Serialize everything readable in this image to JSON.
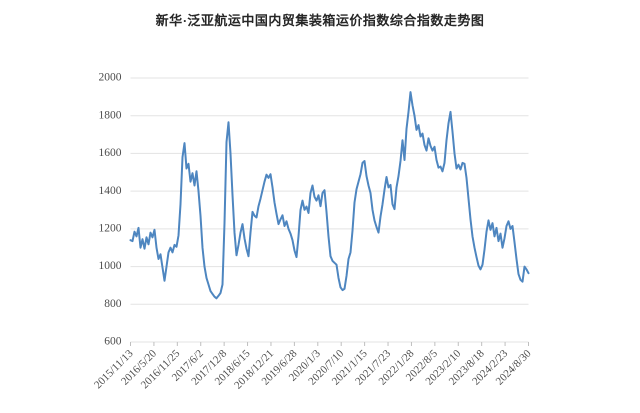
{
  "title": "新华·泛亚航运中国内贸集装箱运价指数综合指数走势图",
  "chart_data": {
    "type": "line",
    "title": "新华·泛亚航运中国内贸集装箱运价指数综合指数走势图",
    "xlabel": "",
    "ylabel": "",
    "grid": true,
    "legend": "none",
    "ylim": [
      600,
      2000
    ],
    "y_ticks": [
      600,
      800,
      1000,
      1200,
      1400,
      1600,
      1800,
      2000
    ],
    "x_tick_labels": [
      "2015/11/13",
      "2016/5/20",
      "2016/11/25",
      "2017/6/2",
      "2017/12/8",
      "2018/6/15",
      "2018/12/21",
      "2019/6/28",
      "2020/1/3",
      "2020/7/10",
      "2021/1/15",
      "2021/7/23",
      "2022/1/28",
      "2022/8/5",
      "2023/2/10",
      "2023/8/18",
      "2024/2/23",
      "2024/8/30"
    ],
    "series": [
      {
        "name": "综合指数",
        "color": "#4e86c0",
        "values": [
          1140,
          1135,
          1185,
          1160,
          1205,
          1100,
          1145,
          1095,
          1155,
          1118,
          1180,
          1155,
          1195,
          1100,
          1040,
          1065,
          995,
          925,
          1000,
          1075,
          1100,
          1075,
          1115,
          1105,
          1165,
          1330,
          1580,
          1655,
          1520,
          1545,
          1450,
          1495,
          1430,
          1505,
          1400,
          1270,
          1100,
          1000,
          940,
          905,
          870,
          855,
          840,
          832,
          845,
          860,
          905,
          1230,
          1660,
          1765,
          1600,
          1380,
          1180,
          1060,
          1115,
          1180,
          1225,
          1150,
          1095,
          1055,
          1180,
          1290,
          1270,
          1260,
          1320,
          1360,
          1405,
          1450,
          1487,
          1470,
          1490,
          1420,
          1340,
          1280,
          1225,
          1250,
          1272,
          1215,
          1240,
          1200,
          1175,
          1140,
          1085,
          1050,
          1160,
          1300,
          1350,
          1301,
          1318,
          1284,
          1390,
          1430,
          1370,
          1350,
          1378,
          1320,
          1390,
          1405,
          1290,
          1160,
          1055,
          1030,
          1020,
          1010,
          940,
          890,
          875,
          882,
          950,
          1040,
          1075,
          1190,
          1340,
          1410,
          1450,
          1490,
          1550,
          1560,
          1480,
          1430,
          1390,
          1301,
          1245,
          1210,
          1180,
          1265,
          1330,
          1407,
          1475,
          1420,
          1433,
          1330,
          1305,
          1420,
          1480,
          1560,
          1670,
          1565,
          1730,
          1820,
          1925,
          1855,
          1800,
          1725,
          1750,
          1690,
          1705,
          1645,
          1615,
          1680,
          1640,
          1615,
          1635,
          1565,
          1525,
          1530,
          1505,
          1550,
          1670,
          1760,
          1820,
          1715,
          1600,
          1520,
          1540,
          1515,
          1550,
          1545,
          1470,
          1360,
          1250,
          1160,
          1100,
          1050,
          1005,
          985,
          1010,
          1090,
          1185,
          1245,
          1195,
          1230,
          1160,
          1205,
          1135,
          1175,
          1100,
          1150,
          1215,
          1240,
          1200,
          1215,
          1130,
          1040,
          960,
          930,
          920,
          1000,
          985,
          965
        ]
      }
    ]
  },
  "colors": {
    "line": "#4e86c0",
    "gridline": "#e3e3e3",
    "tick_mark": "#bfbfbf",
    "tick_label": "#4d4d4d",
    "title_text": "#262626",
    "background": "#ffffff"
  }
}
